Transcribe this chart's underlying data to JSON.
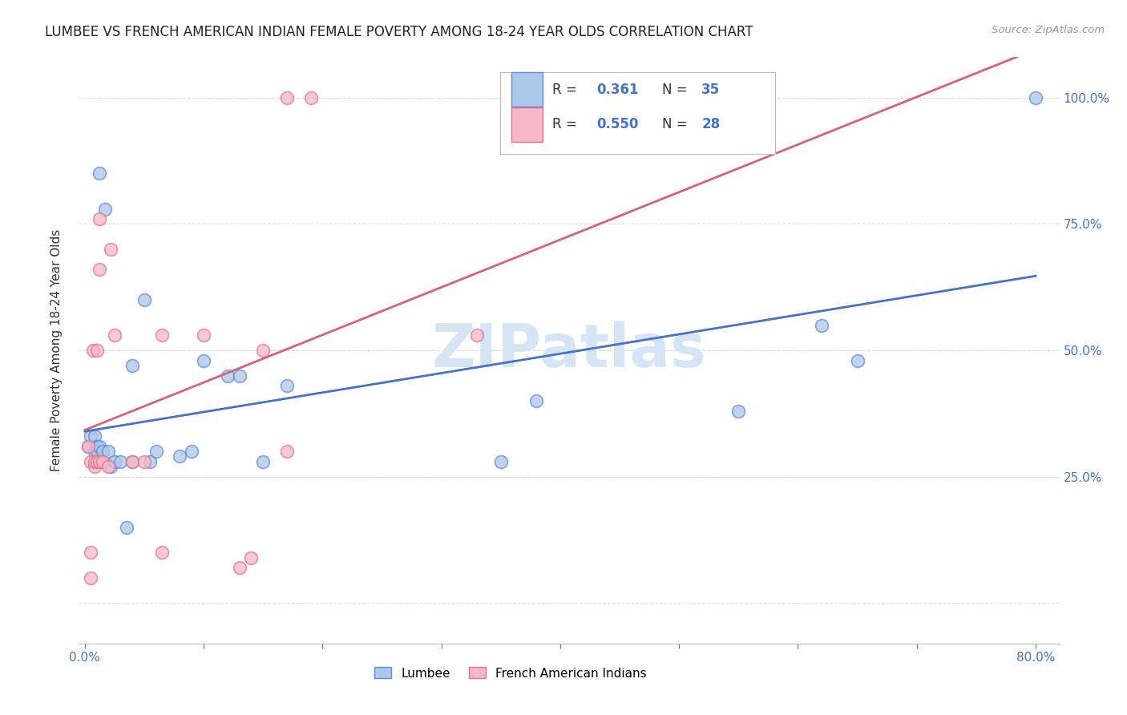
{
  "title": "LUMBEE VS FRENCH AMERICAN INDIAN FEMALE POVERTY AMONG 18-24 YEAR OLDS CORRELATION CHART",
  "source": "Source: ZipAtlas.com",
  "ylabel": "Female Poverty Among 18-24 Year Olds",
  "xlim": [
    -0.005,
    0.82
  ],
  "ylim": [
    -0.08,
    1.08
  ],
  "xtick_positions": [
    0.0,
    0.1,
    0.2,
    0.3,
    0.4,
    0.5,
    0.6,
    0.7,
    0.8
  ],
  "xticklabels": [
    "0.0%",
    "",
    "",
    "",
    "",
    "",
    "",
    "",
    "80.0%"
  ],
  "ytick_positions": [
    0.0,
    0.25,
    0.5,
    0.75,
    1.0
  ],
  "yticklabels_right": [
    "",
    "25.0%",
    "50.0%",
    "75.0%",
    "100.0%"
  ],
  "lumbee_R": "0.361",
  "lumbee_N": "35",
  "french_R": "0.550",
  "french_N": "28",
  "lumbee_color": "#aec6e8",
  "french_color": "#f4b8c8",
  "lumbee_edge_color": "#5b8dd9",
  "french_edge_color": "#e8728a",
  "lumbee_line_color": "#4472c4",
  "french_line_color": "#d9607a",
  "legend_box_color": "#e8e8f0",
  "watermark_color": "#d5e5f5",
  "background_color": "#ffffff",
  "grid_color": "#d8d8d8",
  "lumbee_x": [
    0.003,
    0.005,
    0.008,
    0.008,
    0.01,
    0.01,
    0.01,
    0.012,
    0.012,
    0.015,
    0.015,
    0.017,
    0.02,
    0.022,
    0.025,
    0.03,
    0.035,
    0.04,
    0.04,
    0.05,
    0.055,
    0.06,
    0.08,
    0.09,
    0.1,
    0.12,
    0.13,
    0.15,
    0.17,
    0.35,
    0.38,
    0.55,
    0.62,
    0.65,
    0.8
  ],
  "lumbee_y": [
    0.31,
    0.33,
    0.33,
    0.3,
    0.31,
    0.31,
    0.3,
    0.31,
    0.85,
    0.3,
    0.28,
    0.78,
    0.3,
    0.27,
    0.28,
    0.28,
    0.15,
    0.28,
    0.47,
    0.6,
    0.28,
    0.3,
    0.29,
    0.3,
    0.48,
    0.45,
    0.45,
    0.28,
    0.43,
    0.28,
    0.4,
    0.38,
    0.55,
    0.48,
    1.0
  ],
  "french_x": [
    0.003,
    0.005,
    0.005,
    0.005,
    0.007,
    0.008,
    0.008,
    0.01,
    0.01,
    0.012,
    0.012,
    0.012,
    0.015,
    0.02,
    0.022,
    0.025,
    0.04,
    0.05,
    0.065,
    0.065,
    0.1,
    0.13,
    0.14,
    0.15,
    0.17,
    0.17,
    0.19,
    0.33
  ],
  "french_y": [
    0.31,
    0.1,
    0.05,
    0.28,
    0.5,
    0.27,
    0.28,
    0.5,
    0.28,
    0.66,
    0.76,
    0.28,
    0.28,
    0.27,
    0.7,
    0.53,
    0.28,
    0.28,
    0.53,
    0.1,
    0.53,
    0.07,
    0.09,
    0.5,
    0.3,
    1.0,
    1.0,
    0.53
  ]
}
